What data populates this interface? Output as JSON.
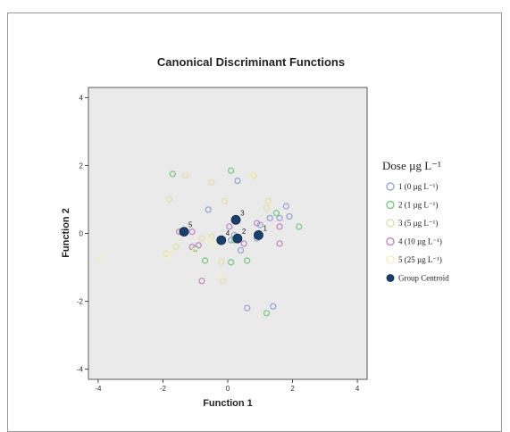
{
  "chart_data": {
    "type": "scatter",
    "title": "Canonical Discriminant Functions",
    "xlabel": "Function 1",
    "ylabel": "Function 2",
    "xlim": [
      -4.3,
      4.3
    ],
    "ylim": [
      -4.3,
      4.3
    ],
    "xticks": [
      "-4",
      "-2",
      "0",
      "2",
      "4"
    ],
    "yticks": [
      "4",
      "2",
      "0",
      "-2",
      "-4"
    ],
    "grid": false,
    "legend_position": "right",
    "legend": {
      "title": "Dose µg L⁻¹",
      "centroid_label": "Group Centroid"
    },
    "series": [
      {
        "name": "1 (0 µg L⁻¹)",
        "color": "#9da6d4",
        "points": [
          [
            0.3,
            1.55
          ],
          [
            -0.6,
            0.7
          ],
          [
            1.3,
            0.45
          ],
          [
            1.6,
            0.45
          ],
          [
            1.9,
            0.5
          ],
          [
            1.8,
            0.8
          ],
          [
            1.0,
            0.25
          ],
          [
            0.4,
            -0.5
          ],
          [
            0.9,
            -0.15
          ],
          [
            0.1,
            -0.2
          ],
          [
            0.6,
            -2.2
          ],
          [
            1.4,
            -2.15
          ],
          [
            0.2,
            -0.05
          ]
        ]
      },
      {
        "name": "2 (1 µg L⁻¹)",
        "color": "#7cc98a",
        "points": [
          [
            -1.7,
            1.75
          ],
          [
            0.1,
            1.85
          ],
          [
            1.5,
            0.6
          ],
          [
            2.2,
            0.2
          ],
          [
            0.2,
            -0.2
          ],
          [
            0.6,
            -0.8
          ],
          [
            -0.7,
            -0.8
          ],
          [
            0.1,
            -0.85
          ],
          [
            1.2,
            -2.35
          ],
          [
            -1.0,
            -0.45
          ]
        ]
      },
      {
        "name": "3 (5 µg L⁻¹)",
        "color": "#e7dcae",
        "points": [
          [
            -1.3,
            1.7
          ],
          [
            0.8,
            1.7
          ],
          [
            -0.5,
            1.5
          ],
          [
            -0.1,
            0.95
          ],
          [
            1.25,
            0.95
          ],
          [
            1.2,
            0.75
          ],
          [
            -1.8,
            1.0
          ],
          [
            -0.5,
            -0.1
          ],
          [
            -0.8,
            -0.15
          ],
          [
            -0.2,
            -0.85
          ],
          [
            -0.15,
            -1.4
          ],
          [
            -1.9,
            -0.6
          ],
          [
            -1.6,
            -0.4
          ]
        ]
      },
      {
        "name": "4 (10 µg L⁻¹)",
        "color": "#c08ac2",
        "points": [
          [
            -1.5,
            0.05
          ],
          [
            -1.1,
            0.05
          ],
          [
            -0.9,
            -0.35
          ],
          [
            -1.1,
            -0.4
          ],
          [
            1.6,
            -0.3
          ],
          [
            1.6,
            0.2
          ],
          [
            0.9,
            0.3
          ],
          [
            0.05,
            0.2
          ],
          [
            -0.8,
            -1.4
          ],
          [
            0.5,
            -0.3
          ]
        ]
      },
      {
        "name": "5 (25 µg L⁻¹)",
        "color": "#f6f0c5",
        "points": [
          [
            -3.9,
            -0.75
          ],
          [
            -1.9,
            -0.7
          ],
          [
            -1.75,
            -0.55
          ],
          [
            -1.0,
            -0.5
          ],
          [
            -0.6,
            -0.2
          ],
          [
            -0.2,
            -1.25
          ],
          [
            -0.45,
            -0.35
          ],
          [
            0.7,
            1.7
          ]
        ]
      }
    ],
    "centroids": [
      {
        "label": "1",
        "x": 0.95,
        "y": -0.05
      },
      {
        "label": "2",
        "x": 0.3,
        "y": -0.15
      },
      {
        "label": "3",
        "x": 0.25,
        "y": 0.4
      },
      {
        "label": "4",
        "x": -0.2,
        "y": -0.2
      },
      {
        "label": "5",
        "x": -1.35,
        "y": 0.05
      }
    ],
    "colors": {
      "plot_background": "#eaeaea",
      "centroid": "#1b3f6b"
    }
  }
}
